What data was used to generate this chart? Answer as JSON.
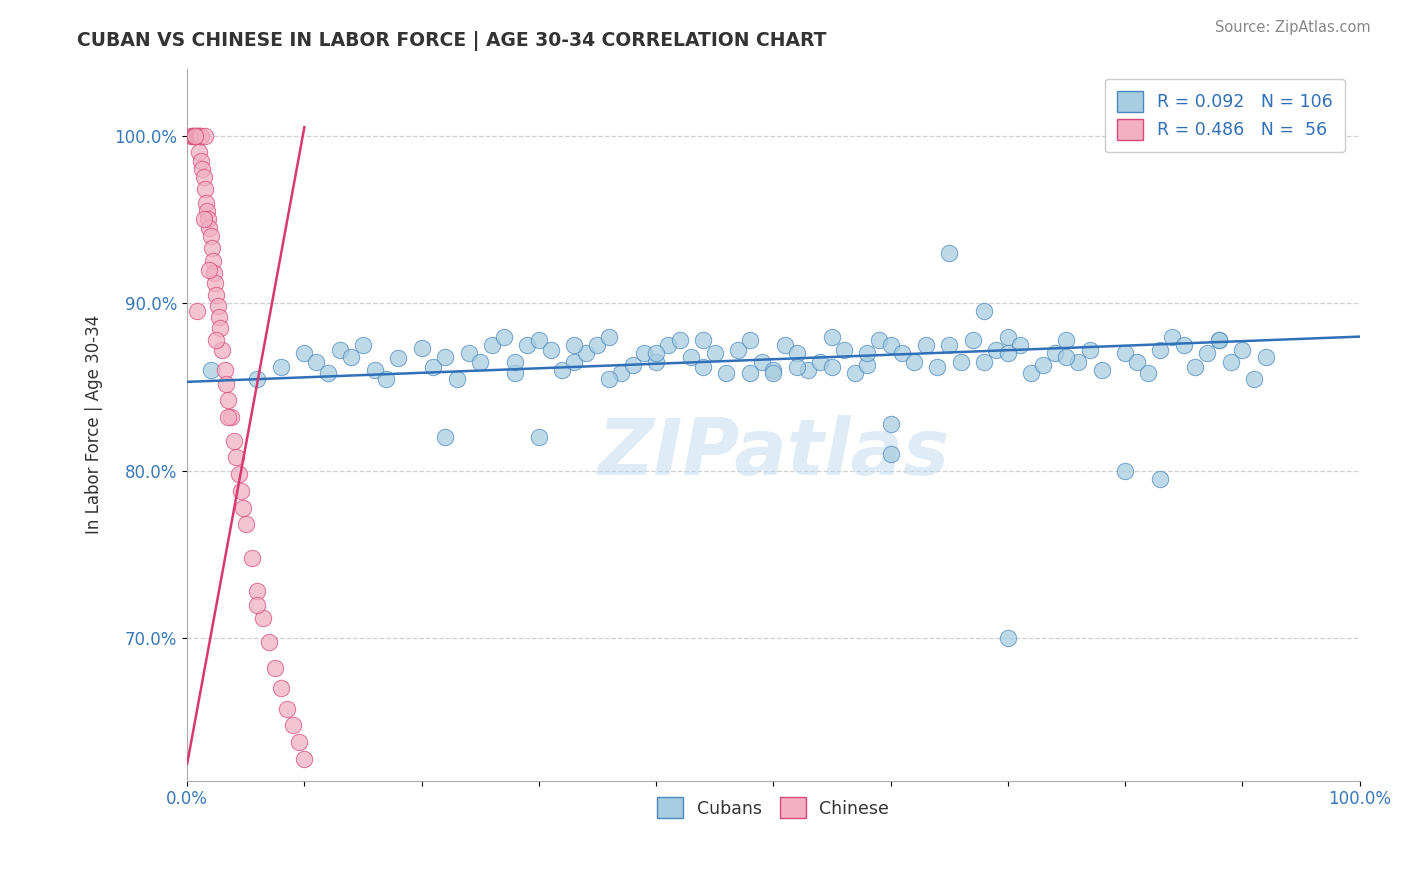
{
  "title": "CUBAN VS CHINESE IN LABOR FORCE | AGE 30-34 CORRELATION CHART",
  "source_text": "Source: ZipAtlas.com",
  "ylabel": "In Labor Force | Age 30-34",
  "xlim": [
    0.0,
    1.0
  ],
  "ylim": [
    0.615,
    1.04
  ],
  "yticks": [
    0.7,
    0.8,
    0.9,
    1.0
  ],
  "ytick_labels": [
    "70.0%",
    "80.0%",
    "90.0%",
    "100.0%"
  ],
  "xtick_positions": [
    0.0,
    0.1,
    0.2,
    0.3,
    0.4,
    0.5,
    0.6,
    0.7,
    0.8,
    0.9,
    1.0
  ],
  "xtick_labels": [
    "0.0%",
    "",
    "",
    "",
    "",
    "",
    "",
    "",
    "",
    "",
    "100.0%"
  ],
  "blue_color": "#a8cde0",
  "pink_color": "#f2b0c2",
  "blue_edge_color": "#4a88c0",
  "pink_edge_color": "#d84878",
  "blue_line_color": "#3070b8",
  "pink_line_color": "#d83870",
  "watermark": "ZIPatlas",
  "blue_x": [
    0.02,
    0.06,
    0.08,
    0.1,
    0.11,
    0.12,
    0.13,
    0.14,
    0.15,
    0.16,
    0.17,
    0.18,
    0.2,
    0.21,
    0.22,
    0.23,
    0.24,
    0.25,
    0.26,
    0.27,
    0.28,
    0.29,
    0.3,
    0.31,
    0.32,
    0.33,
    0.34,
    0.35,
    0.36,
    0.37,
    0.38,
    0.39,
    0.4,
    0.41,
    0.42,
    0.43,
    0.44,
    0.45,
    0.46,
    0.47,
    0.48,
    0.49,
    0.5,
    0.51,
    0.52,
    0.53,
    0.54,
    0.55,
    0.56,
    0.57,
    0.58,
    0.59,
    0.6,
    0.61,
    0.62,
    0.63,
    0.64,
    0.65,
    0.66,
    0.67,
    0.68,
    0.69,
    0.7,
    0.71,
    0.72,
    0.73,
    0.74,
    0.75,
    0.76,
    0.77,
    0.78,
    0.8,
    0.81,
    0.82,
    0.83,
    0.84,
    0.85,
    0.86,
    0.87,
    0.88,
    0.89,
    0.9,
    0.91,
    0.92,
    0.22,
    0.3,
    0.4,
    0.5,
    0.55,
    0.6,
    0.65,
    0.7,
    0.75,
    0.28,
    0.36,
    0.44,
    0.52,
    0.6,
    0.68,
    0.8,
    0.88,
    0.33,
    0.48,
    0.58,
    0.7,
    0.83
  ],
  "blue_y": [
    0.86,
    0.855,
    0.862,
    0.87,
    0.865,
    0.858,
    0.872,
    0.868,
    0.875,
    0.86,
    0.855,
    0.867,
    0.873,
    0.862,
    0.868,
    0.855,
    0.87,
    0.865,
    0.875,
    0.88,
    0.858,
    0.875,
    0.878,
    0.872,
    0.86,
    0.865,
    0.87,
    0.875,
    0.88,
    0.858,
    0.863,
    0.87,
    0.865,
    0.875,
    0.878,
    0.868,
    0.862,
    0.87,
    0.858,
    0.872,
    0.878,
    0.865,
    0.86,
    0.875,
    0.87,
    0.86,
    0.865,
    0.88,
    0.872,
    0.858,
    0.863,
    0.878,
    0.875,
    0.87,
    0.865,
    0.875,
    0.862,
    0.93,
    0.865,
    0.878,
    0.865,
    0.872,
    0.88,
    0.875,
    0.858,
    0.863,
    0.87,
    0.878,
    0.865,
    0.872,
    0.86,
    0.87,
    0.865,
    0.858,
    0.872,
    0.88,
    0.875,
    0.862,
    0.87,
    0.878,
    0.865,
    0.872,
    0.855,
    0.868,
    0.82,
    0.82,
    0.87,
    0.858,
    0.862,
    0.828,
    0.875,
    0.87,
    0.868,
    0.865,
    0.855,
    0.878,
    0.862,
    0.81,
    0.895,
    0.8,
    0.878,
    0.875,
    0.858,
    0.87,
    0.7,
    0.795
  ],
  "pink_x": [
    0.003,
    0.005,
    0.006,
    0.007,
    0.008,
    0.009,
    0.01,
    0.01,
    0.011,
    0.012,
    0.012,
    0.013,
    0.014,
    0.015,
    0.015,
    0.016,
    0.017,
    0.018,
    0.019,
    0.02,
    0.021,
    0.022,
    0.023,
    0.024,
    0.025,
    0.026,
    0.027,
    0.028,
    0.03,
    0.032,
    0.033,
    0.035,
    0.037,
    0.04,
    0.042,
    0.044,
    0.046,
    0.048,
    0.05,
    0.055,
    0.06,
    0.065,
    0.07,
    0.075,
    0.08,
    0.085,
    0.09,
    0.095,
    0.1,
    0.008,
    0.014,
    0.019,
    0.025,
    0.035,
    0.06,
    0.007
  ],
  "pink_y": [
    1.0,
    1.0,
    1.0,
    1.0,
    1.0,
    1.0,
    1.0,
    0.99,
    1.0,
    1.0,
    0.985,
    0.98,
    0.975,
    1.0,
    0.968,
    0.96,
    0.955,
    0.95,
    0.945,
    0.94,
    0.933,
    0.925,
    0.918,
    0.912,
    0.905,
    0.898,
    0.892,
    0.885,
    0.872,
    0.86,
    0.852,
    0.842,
    0.832,
    0.818,
    0.808,
    0.798,
    0.788,
    0.778,
    0.768,
    0.748,
    0.728,
    0.712,
    0.698,
    0.682,
    0.67,
    0.658,
    0.648,
    0.638,
    0.628,
    0.895,
    0.95,
    0.92,
    0.878,
    0.832,
    0.72,
    1.0
  ],
  "blue_trend_x": [
    0.0,
    1.0
  ],
  "blue_trend_y": [
    0.853,
    0.88
  ],
  "pink_trend_x": [
    0.0,
    0.1
  ],
  "pink_trend_y": [
    0.625,
    1.005
  ],
  "legend_r1": "R = 0.092",
  "legend_n1": "N = 106",
  "legend_r2": "R = 0.486",
  "legend_n2": "N =  56"
}
